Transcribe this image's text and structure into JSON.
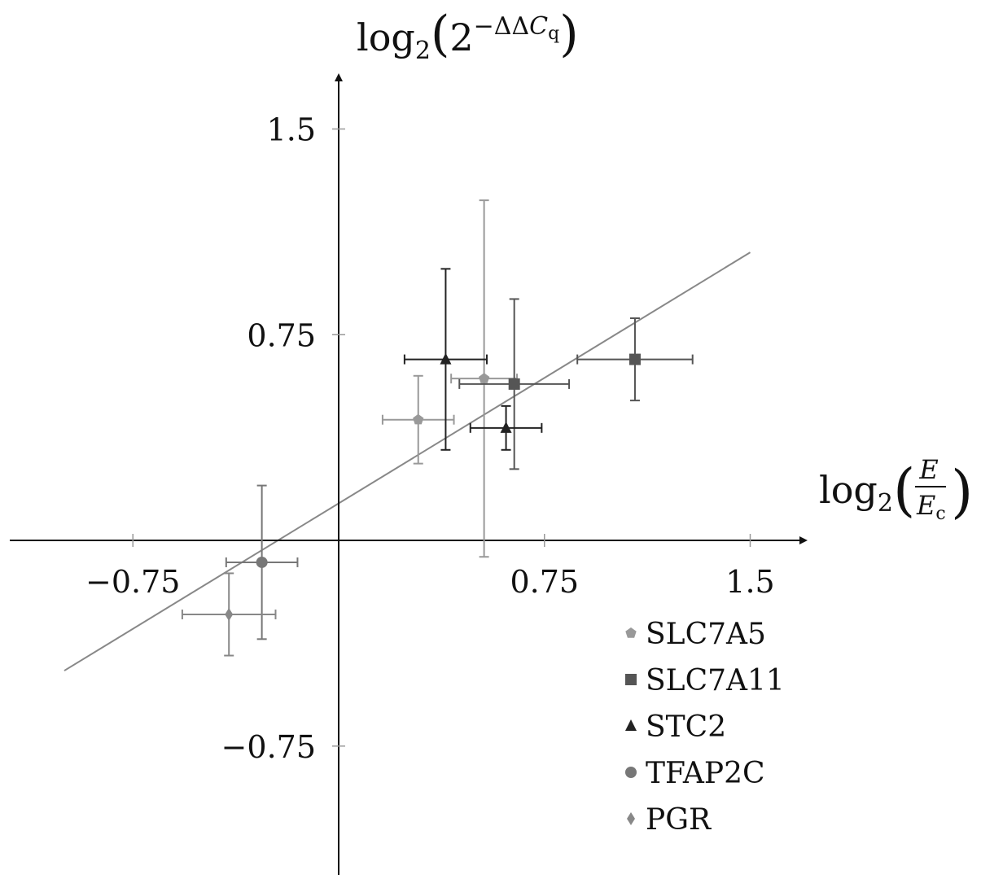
{
  "chart_data": {
    "type": "scatter",
    "title": "",
    "xlabel": {
      "prefix": "log",
      "sub": "2",
      "frac_num": "E",
      "frac_den": "E",
      "frac_den_sub": "c"
    },
    "ylabel": {
      "prefix": "log",
      "sub": "2",
      "base": "2",
      "sup": "−ΔΔ",
      "sup_c": "C",
      "sup_c_sub": "q"
    },
    "xlim": [
      -1.2,
      1.7
    ],
    "ylim": [
      -1.2,
      1.7
    ],
    "x_ticks": [
      {
        "value": -0.75,
        "label": "−0.75"
      },
      {
        "value": 0.75,
        "label": "0.75"
      },
      {
        "value": 1.5,
        "label": "1.5"
      }
    ],
    "y_ticks": [
      {
        "value": 1.5,
        "label": "1.5"
      },
      {
        "value": 0.75,
        "label": "0.75"
      },
      {
        "value": -0.75,
        "label": "−0.75"
      }
    ],
    "x_tick_marks": [
      -0.75,
      0.75,
      1.5
    ],
    "y_tick_marks": [
      1.5,
      0.75,
      -0.75
    ],
    "grid": false,
    "legend_position": "bottom-right",
    "fit_line": {
      "slope": 0.61,
      "intercept": 0.135,
      "x_range": [
        -1.0,
        1.5
      ]
    },
    "series": [
      {
        "name": "SLC7A5",
        "marker": "pentagon",
        "color": "#999999",
        "points": [
          {
            "x": 0.29,
            "y": 0.44,
            "xerr": 0.13,
            "yerr": 0.16
          },
          {
            "x": 0.53,
            "y": 0.59,
            "xerr": 0.12,
            "yerr": 0.65
          }
        ]
      },
      {
        "name": "SLC7A11",
        "marker": "square",
        "color": "#555555",
        "points": [
          {
            "x": 0.64,
            "y": 0.57,
            "xerr": 0.2,
            "yerr": 0.31
          },
          {
            "x": 1.08,
            "y": 0.66,
            "xerr": 0.21,
            "yerr": 0.15
          }
        ]
      },
      {
        "name": "STC2",
        "marker": "triangle",
        "color": "#222222",
        "points": [
          {
            "x": 0.39,
            "y": 0.66,
            "xerr": 0.15,
            "yerr": 0.33
          },
          {
            "x": 0.61,
            "y": 0.41,
            "xerr": 0.13,
            "yerr": 0.08
          }
        ]
      },
      {
        "name": "TFAP2C",
        "marker": "circle",
        "color": "#777777",
        "points": [
          {
            "x": -0.28,
            "y": -0.08,
            "xerr": 0.13,
            "yerr": 0.28
          }
        ]
      },
      {
        "name": "PGR",
        "marker": "diamond",
        "color": "#888888",
        "points": [
          {
            "x": -0.4,
            "y": -0.27,
            "xerr": 0.17,
            "yerr": 0.15
          }
        ]
      }
    ]
  }
}
